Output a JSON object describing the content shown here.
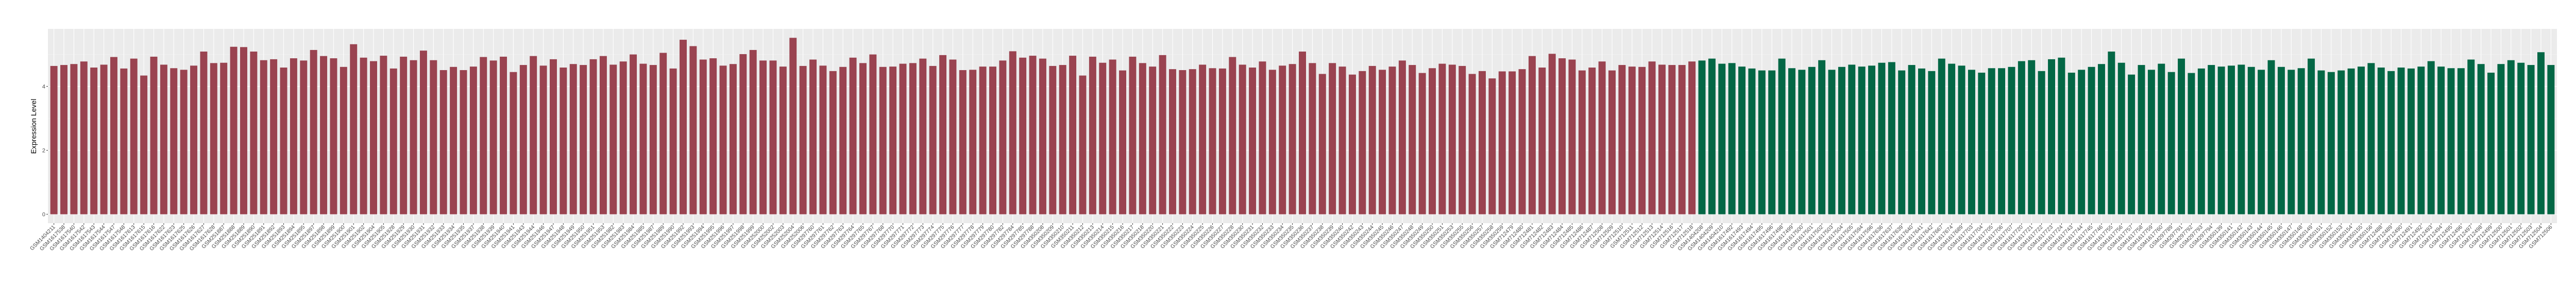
{
  "chart_data": {
    "type": "bar",
    "title": "",
    "xlabel": "",
    "ylabel": "Expression Level",
    "ylim": [
      -0.28,
      5.8
    ],
    "y_ticks": [
      0,
      2,
      4
    ],
    "grid": true,
    "legend": "none",
    "series": [
      {
        "color": "#9a4350",
        "categories": [
          "GSM1404211",
          "GSM1617538",
          "GSM1617540",
          "GSM1617542",
          "GSM1617543",
          "GSM1617544",
          "GSM1617547",
          "GSM1617548",
          "GSM1617613",
          "GSM1617615",
          "GSM1617616",
          "GSM1617622",
          "GSM1617623",
          "GSM1617625",
          "GSM1617626",
          "GSM1617627",
          "GSM1617628",
          "GSM251887",
          "GSM251888",
          "GSM251889",
          "GSM251890",
          "GSM251891",
          "GSM251892",
          "GSM251893",
          "GSM251894",
          "GSM251895",
          "GSM251897",
          "GSM251898",
          "GSM251899",
          "GSM251900",
          "GSM251901",
          "GSM251902",
          "GSM251904",
          "GSM251905",
          "GSM251928",
          "GSM251929",
          "GSM251930",
          "GSM251931",
          "GSM251932",
          "GSM251933",
          "GSM251934",
          "GSM251935",
          "GSM251937",
          "GSM251938",
          "GSM251939",
          "GSM251940",
          "GSM251941",
          "GSM251943",
          "GSM251944",
          "GSM251946",
          "GSM251947",
          "GSM251948",
          "GSM251949",
          "GSM251950",
          "GSM251951",
          "GSM251953",
          "GSM251982",
          "GSM251983",
          "GSM251984",
          "GSM251985",
          "GSM251987",
          "GSM251989",
          "GSM251990",
          "GSM251992",
          "GSM251993",
          "GSM251994",
          "GSM251995",
          "GSM251996",
          "GSM251997",
          "GSM251998",
          "GSM251999",
          "GSM252000",
          "GSM252002",
          "GSM252003",
          "GSM252004",
          "GSM252006",
          "GSM297760",
          "GSM297761",
          "GSM297762",
          "GSM297763",
          "GSM297764",
          "GSM297765",
          "GSM297767",
          "GSM297768",
          "GSM297770",
          "GSM297771",
          "GSM297772",
          "GSM297773",
          "GSM297774",
          "GSM297775",
          "GSM297776",
          "GSM297777",
          "GSM297778",
          "GSM297779",
          "GSM297780",
          "GSM297782",
          "GSM297784",
          "GSM297785",
          "GSM297788",
          "GSM350208",
          "GSM350209",
          "GSM350210",
          "GSM350211",
          "GSM350212",
          "GSM350213",
          "GSM350214",
          "GSM350215",
          "GSM350216",
          "GSM350217",
          "GSM350218",
          "GSM350220",
          "GSM350221",
          "GSM350222",
          "GSM350223",
          "GSM350224",
          "GSM350225",
          "GSM350226",
          "GSM350227",
          "GSM350228",
          "GSM350230",
          "GSM350231",
          "GSM350232",
          "GSM350233",
          "GSM350234",
          "GSM350235",
          "GSM350236",
          "GSM350237",
          "GSM350238",
          "GSM350239",
          "GSM350240",
          "GSM350242",
          "GSM350243",
          "GSM350244",
          "GSM350245",
          "GSM350246",
          "GSM350247",
          "GSM350248",
          "GSM350249",
          "GSM350250",
          "GSM350251",
          "GSM350253",
          "GSM350255",
          "GSM350256",
          "GSM350257",
          "GSM350258",
          "GSM350259",
          "GSM712479",
          "GSM712480",
          "GSM712481",
          "GSM712482",
          "GSM712483",
          "GSM712484",
          "GSM712485",
          "GSM712486",
          "GSM712487",
          "GSM712508",
          "GSM712509",
          "GSM712510",
          "GSM712511",
          "GSM712512",
          "GSM712513",
          "GSM712514",
          "GSM712516",
          "GSM712517",
          "GSM712518"
        ],
        "values": [
          4.64,
          4.67,
          4.7,
          4.78,
          4.59,
          4.68,
          4.92,
          4.56,
          4.87,
          4.34,
          4.93,
          4.68,
          4.57,
          4.52,
          4.65,
          5.09,
          4.73,
          4.74,
          5.24,
          5.23,
          5.09,
          4.82,
          4.85,
          4.59,
          4.88,
          4.81,
          5.14,
          4.95,
          4.88,
          4.61,
          5.32,
          4.9,
          4.79,
          4.96,
          4.56,
          4.93,
          4.82,
          5.12,
          4.82,
          4.51,
          4.61,
          4.51,
          4.62,
          4.92,
          4.81,
          4.93,
          4.45,
          4.67,
          4.95,
          4.65,
          4.85,
          4.59,
          4.7,
          4.67,
          4.85,
          4.95,
          4.68,
          4.78,
          5.0,
          4.71,
          4.67,
          5.05,
          4.56,
          5.46,
          5.26,
          4.84,
          4.88,
          4.65,
          4.7,
          5.01,
          5.14,
          4.81,
          4.81,
          4.62,
          5.52,
          4.64,
          4.84,
          4.65,
          4.48,
          4.61,
          4.9,
          4.73,
          5.0,
          4.61,
          4.62,
          4.71,
          4.73,
          4.87,
          4.64,
          4.98,
          4.84,
          4.51,
          4.52,
          4.62,
          4.62,
          4.81,
          5.1,
          4.9,
          4.96,
          4.87,
          4.64,
          4.67,
          4.96,
          4.34,
          4.93,
          4.74,
          4.84,
          4.5,
          4.93,
          4.73,
          4.62,
          4.98,
          4.54,
          4.51,
          4.54,
          4.68,
          4.57,
          4.56,
          4.92,
          4.68,
          4.59,
          4.78,
          4.52,
          4.65,
          4.7,
          5.09,
          4.73,
          4.39,
          4.73,
          4.62,
          4.37,
          4.48,
          4.64,
          4.52,
          4.62,
          4.81,
          4.67,
          4.42,
          4.57,
          4.71,
          4.68,
          4.64,
          4.39,
          4.48,
          4.25,
          4.47,
          4.47,
          4.54,
          4.95,
          4.59,
          5.02,
          4.88,
          4.84,
          4.5,
          4.59,
          4.78,
          4.5,
          4.67,
          4.62,
          4.61,
          4.78,
          4.68,
          4.67,
          4.67,
          4.78
        ]
      },
      {
        "color": "#036745",
        "categories": [
          "GSM1404208",
          "GSM1404209",
          "GSM1404210",
          "GSM1617492",
          "GSM1617493",
          "GSM1617494",
          "GSM1617495",
          "GSM1617496",
          "GSM1617498",
          "GSM1617499",
          "GSM1617500",
          "GSM1617501",
          "GSM1617502",
          "GSM1617503",
          "GSM1617504",
          "GSM1617505",
          "GSM1617594",
          "GSM1617596",
          "GSM1617636",
          "GSM1617637",
          "GSM1617639",
          "GSM1617640",
          "GSM1617641",
          "GSM1617642",
          "GSM1617667",
          "GSM1617674",
          "GSM1617689",
          "GSM1617703",
          "GSM1617704",
          "GSM1617705",
          "GSM1617706",
          "GSM1617707",
          "GSM1617720",
          "GSM1617721",
          "GSM1617722",
          "GSM1617723",
          "GSM1617724",
          "GSM1617743",
          "GSM1617744",
          "GSM1617745",
          "GSM1617746",
          "GSM1617755",
          "GSM1617756",
          "GSM1617757",
          "GSM1617758",
          "GSM1617759",
          "GSM1617760",
          "GSM297789",
          "GSM297791",
          "GSM297792",
          "GSM297793",
          "GSM297794",
          "GSM350139",
          "GSM350141",
          "GSM350142",
          "GSM350143",
          "GSM350144",
          "GSM350145",
          "GSM350146",
          "GSM350147",
          "GSM350148",
          "GSM350149",
          "GSM350151",
          "GSM350152",
          "GSM350153",
          "GSM350154",
          "GSM350155",
          "GSM350156",
          "GSM712488",
          "GSM712489",
          "GSM712490",
          "GSM712491",
          "GSM712492",
          "GSM712493",
          "GSM712494",
          "GSM712495",
          "GSM712496",
          "GSM712497",
          "GSM712498",
          "GSM712499",
          "GSM712500",
          "GSM712501",
          "GSM712502",
          "GSM712503",
          "GSM712504",
          "GSM712506"
        ],
        "values": [
          4.81,
          4.87,
          4.71,
          4.73,
          4.62,
          4.56,
          4.5,
          4.5,
          4.87,
          4.57,
          4.52,
          4.61,
          4.82,
          4.52,
          4.61,
          4.68,
          4.62,
          4.65,
          4.74,
          4.76,
          4.5,
          4.67,
          4.56,
          4.48,
          4.87,
          4.71,
          4.65,
          4.52,
          4.43,
          4.57,
          4.57,
          4.61,
          4.79,
          4.82,
          4.48,
          4.85,
          4.9,
          4.43,
          4.52,
          4.61,
          4.7,
          5.09,
          4.74,
          4.37,
          4.67,
          4.52,
          4.71,
          4.45,
          4.87,
          4.42,
          4.56,
          4.67,
          4.62,
          4.65,
          4.68,
          4.61,
          4.52,
          4.82,
          4.61,
          4.52,
          4.57,
          4.87,
          4.5,
          4.45,
          4.5,
          4.56,
          4.62,
          4.73,
          4.59,
          4.48,
          4.59,
          4.56,
          4.62,
          4.79,
          4.62,
          4.57,
          4.57,
          4.84,
          4.7,
          4.43,
          4.7,
          4.82,
          4.74,
          4.67,
          5.07,
          4.67
        ]
      }
    ]
  }
}
